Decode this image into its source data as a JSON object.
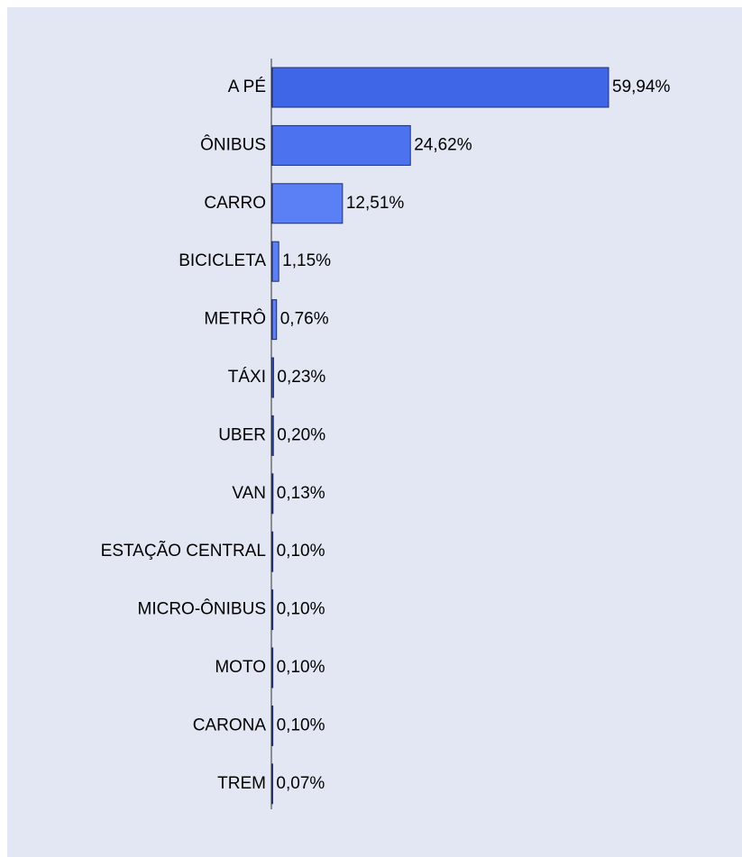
{
  "chart_data": {
    "type": "bar",
    "orientation": "horizontal",
    "categories": [
      "A PÉ",
      "ÔNIBUS",
      "CARRO",
      "BICICLETA",
      "METRÔ",
      "TÁXI",
      "UBER",
      "VAN",
      "ESTAÇÃO CENTRAL",
      "MICRO-ÔNIBUS",
      "MOTO",
      "CARONA",
      "TREM"
    ],
    "values": [
      59.94,
      24.62,
      12.51,
      1.15,
      0.76,
      0.23,
      0.2,
      0.13,
      0.1,
      0.1,
      0.1,
      0.1,
      0.07
    ],
    "value_labels": [
      "59,94%",
      "24,62%",
      "12,51%",
      "1,15%",
      "0,76%",
      "0,23%",
      "0,20%",
      "0,13%",
      "0,10%",
      "0,10%",
      "0,10%",
      "0,10%",
      "0,07%"
    ],
    "colors": [
      "#3f66e6",
      "#4c72ef",
      "#5b80f5",
      "#5b80f5",
      "#5b80f5",
      "#5b80f5",
      "#5b80f5",
      "#5b80f5",
      "#5b80f5",
      "#5b80f5",
      "#5b80f5",
      "#5b80f5",
      "#5b80f5"
    ]
  }
}
